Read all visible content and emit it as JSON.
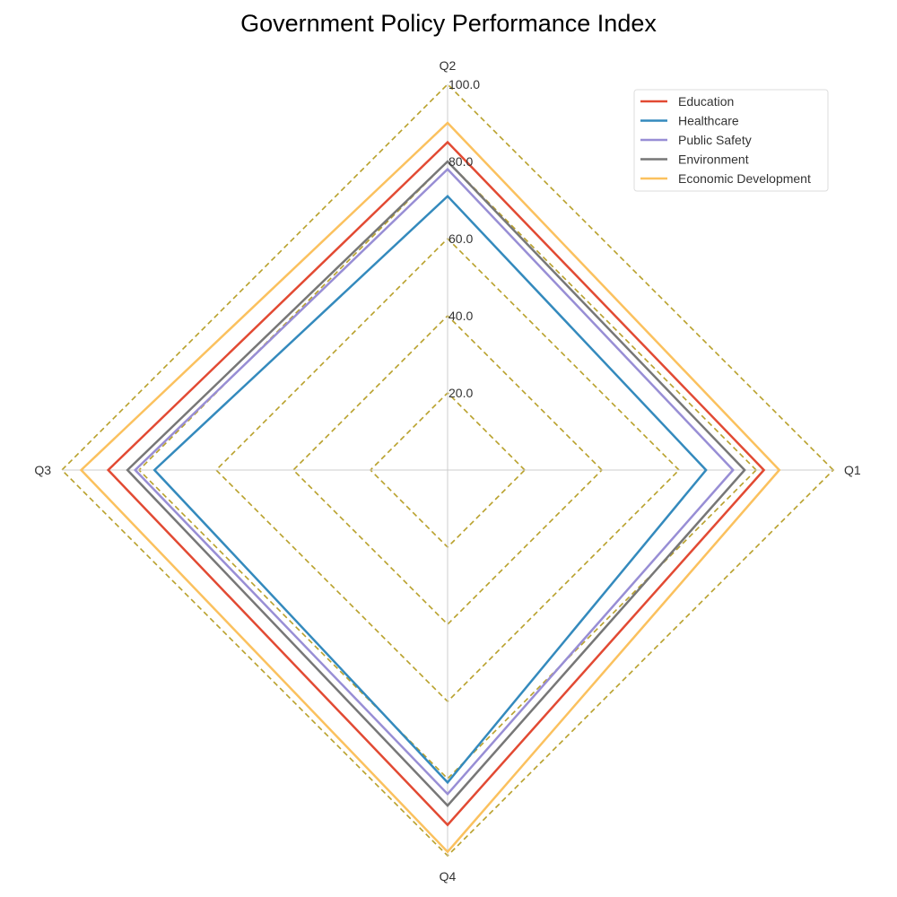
{
  "chart_data": {
    "type": "radar",
    "title": "Government Policy Performance Index",
    "axes": [
      "Q1",
      "Q2",
      "Q3",
      "Q4"
    ],
    "rlim": [
      0,
      100
    ],
    "r_ticks": [
      "20.0",
      "40.0",
      "60.0",
      "80.0",
      "100.0"
    ],
    "r_tick_values": [
      20,
      40,
      60,
      80,
      100
    ],
    "grid": true,
    "grid_color": "#b8a02a",
    "axis_line_color": "#cccccc",
    "legend_position": "upper-right",
    "series": [
      {
        "name": "Education",
        "values": [
          82,
          85,
          88,
          92
        ],
        "color": "#e24a33"
      },
      {
        "name": "Healthcare",
        "values": [
          67,
          71,
          76,
          81
        ],
        "color": "#348abd"
      },
      {
        "name": "Public Safety",
        "values": [
          74,
          78,
          81,
          84
        ],
        "color": "#988ed5"
      },
      {
        "name": "Environment",
        "values": [
          77,
          80,
          83,
          87
        ],
        "color": "#777777"
      },
      {
        "name": "Economic Development",
        "values": [
          86,
          90,
          95,
          99
        ],
        "color": "#fbc15e"
      }
    ]
  }
}
